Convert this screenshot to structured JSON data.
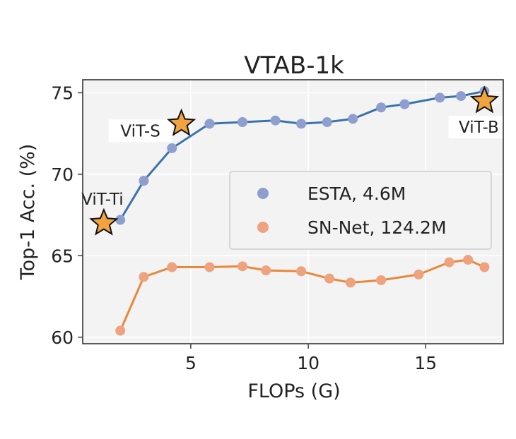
{
  "chart_data": {
    "type": "line",
    "title": "VTAB-1k",
    "xlabel": "FLOPs (G)",
    "ylabel": "Top-1 Acc. (%)",
    "xlim": [
      0.4,
      18.3
    ],
    "ylim": [
      59.6,
      75.8
    ],
    "xticks": [
      5,
      10,
      15
    ],
    "yticks": [
      60,
      65,
      70,
      75
    ],
    "grid": true,
    "legend": "center-right",
    "series": [
      {
        "name": "ESTA, 4.6M",
        "line_color": "#3b73aa",
        "marker_color": "#8e9fcf",
        "x": [
          2.0,
          3.0,
          4.2,
          5.8,
          7.2,
          8.6,
          9.7,
          10.8,
          11.9,
          13.1,
          14.1,
          15.6,
          16.5,
          17.5
        ],
        "y": [
          67.2,
          69.6,
          71.6,
          73.1,
          73.2,
          73.3,
          73.1,
          73.2,
          73.4,
          74.1,
          74.3,
          74.7,
          74.8,
          75.1
        ]
      },
      {
        "name": "SN-Net, 124.2M",
        "line_color": "#e8883a",
        "marker_color": "#eea27e",
        "x": [
          2.0,
          3.0,
          4.2,
          5.8,
          7.2,
          8.2,
          9.7,
          10.9,
          11.8,
          13.1,
          14.7,
          16.0,
          16.8,
          17.5
        ],
        "y": [
          60.4,
          63.7,
          64.3,
          64.3,
          64.35,
          64.1,
          64.05,
          63.6,
          63.35,
          63.5,
          63.85,
          64.6,
          64.75,
          64.3
        ]
      }
    ],
    "anchors": [
      {
        "label": "ViT-Ti",
        "x": 1.3,
        "y": 67.0,
        "color": "#f0a33e"
      },
      {
        "label": "ViT-S",
        "x": 4.6,
        "y": 73.1,
        "color": "#f0a33e"
      },
      {
        "label": "ViT-B",
        "x": 17.5,
        "y": 74.5,
        "color": "#f0a33e"
      }
    ],
    "plot_background": "#f3f3f3"
  }
}
